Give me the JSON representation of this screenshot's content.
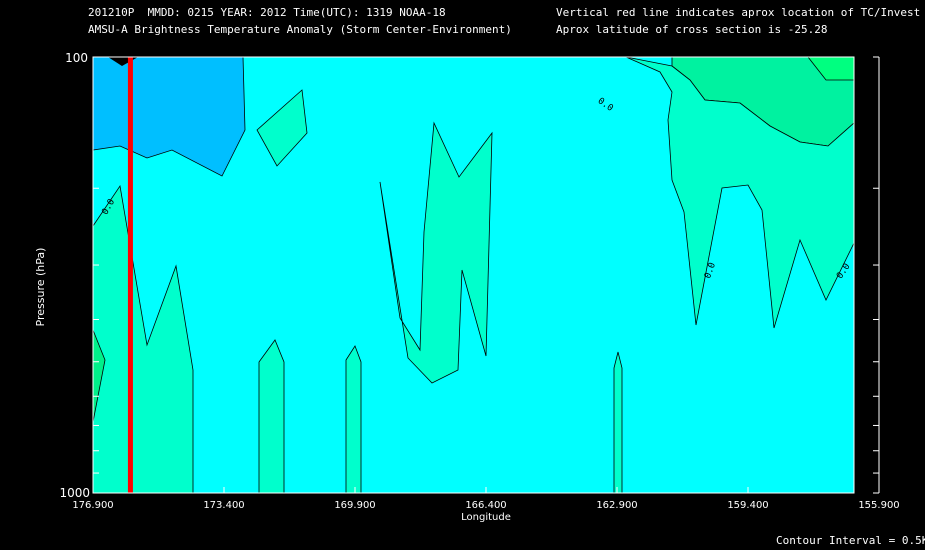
{
  "header": {
    "line1_left": "201210P  MMDD: 0215 YEAR: 2012 Time(UTC): 1319 NOAA-18",
    "line2_left": "AMSU-A Brightness Temperature Anomaly (Storm Center-Environment)",
    "line1_right": "Vertical red line indicates aprox location of TC/Invest",
    "line2_right": "Aprox latitude of cross section is -25.28"
  },
  "footer": {
    "contour_interval": "Contour Interval = 0.5K"
  },
  "colors": {
    "background": "#000000",
    "cyan_base": "#00ffff",
    "light_green": "#00ffcc",
    "green": "#00f08a",
    "bright_green": "#00ff7f",
    "blue": "#00bfff",
    "storm_line": "#ff0000",
    "contour": "#000000"
  },
  "chart_data": {
    "type": "heatmap",
    "subtype": "contour cross-section",
    "xlabel": "Longitude",
    "ylabel": "Pressure (hPa)",
    "x_ticks": [
      "176.900",
      "173.400",
      "169.900",
      "166.400",
      "162.900",
      "159.400",
      "155.900"
    ],
    "x_range": [
      176.9,
      155.9
    ],
    "y_ticks_labeled": [
      "100",
      "1000"
    ],
    "y_range_hPa": [
      100,
      1000
    ],
    "y_scale": "log",
    "storm_longitude": 175.9,
    "contour_labels": [
      "0.0",
      "0.0",
      "0.0",
      "0.0"
    ],
    "contour_interval_K": 0.5
  }
}
